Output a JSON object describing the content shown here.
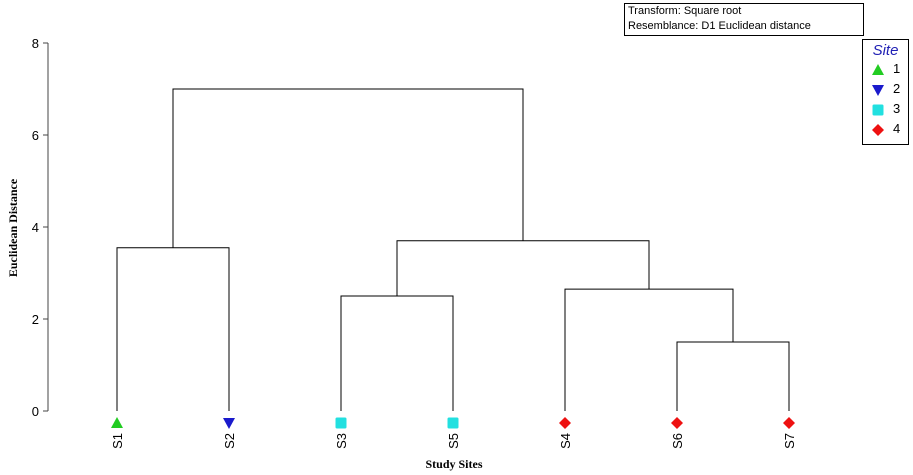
{
  "info": {
    "transform": "Transform: Square root",
    "resemblance": "Resemblance: D1 Euclidean distance"
  },
  "legend": {
    "title": "Site",
    "items": [
      {
        "label": "1",
        "marker": "triangle-up",
        "color": "#22cc22"
      },
      {
        "label": "2",
        "marker": "triangle-down",
        "color": "#1a1acc"
      },
      {
        "label": "3",
        "marker": "square",
        "color": "#22e0e0"
      },
      {
        "label": "4",
        "marker": "diamond",
        "color": "#ee1111"
      }
    ]
  },
  "chart_data": {
    "type": "dendrogram",
    "xlabel": "Study Sites",
    "ylabel": "Euclidean Distance",
    "ylim": [
      0,
      8
    ],
    "yticks": [
      0,
      2,
      4,
      6,
      8
    ],
    "leaves": [
      {
        "label": "S1",
        "site": "1"
      },
      {
        "label": "S2",
        "site": "2"
      },
      {
        "label": "S3",
        "site": "3"
      },
      {
        "label": "S5",
        "site": "3"
      },
      {
        "label": "S4",
        "site": "4"
      },
      {
        "label": "S6",
        "site": "4"
      },
      {
        "label": "S7",
        "site": "4"
      }
    ],
    "merges": [
      {
        "left": "S6",
        "right": "S7",
        "height": 1.5
      },
      {
        "left": "S3",
        "right": "S5",
        "height": 2.5
      },
      {
        "left": "S4",
        "right": "S6+S7",
        "height": 2.65
      },
      {
        "left": "S3+S5",
        "right": "S4+S6+S7",
        "height": 3.7
      },
      {
        "left": "S1",
        "right": "S2",
        "height": 3.55
      },
      {
        "left": "S1+S2",
        "right": "S3+S5+S4+S6+S7",
        "height": 7.0
      }
    ]
  }
}
